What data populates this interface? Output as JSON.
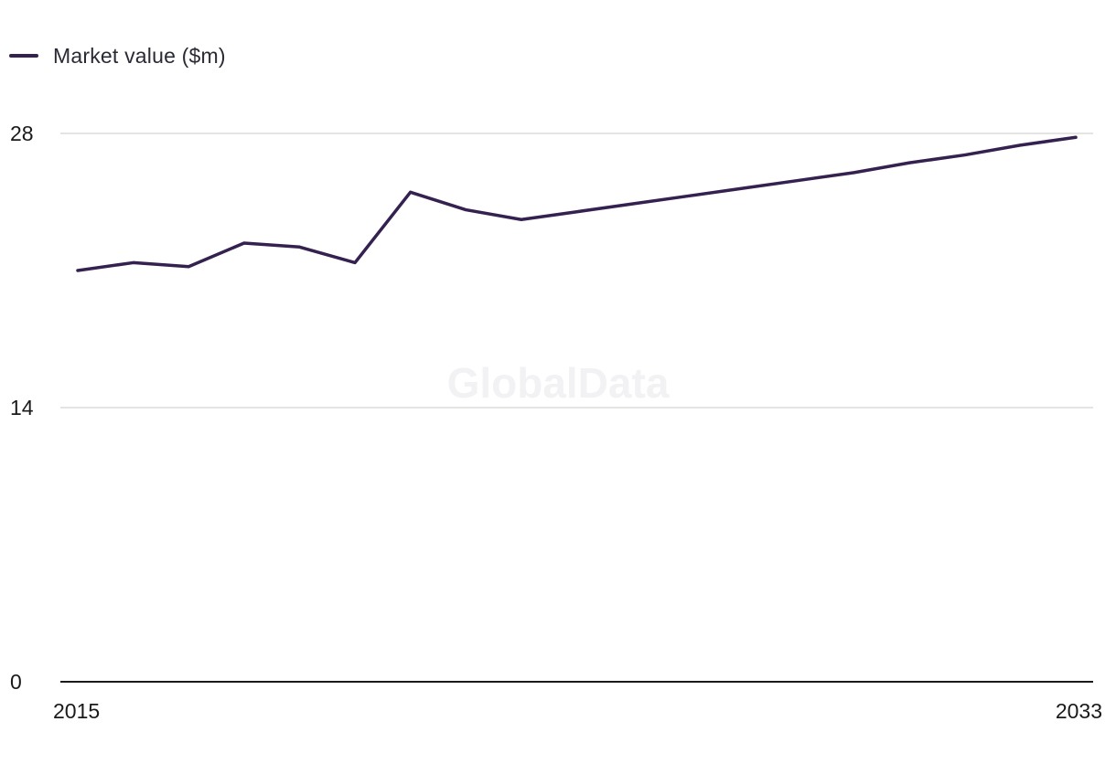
{
  "chart_data": {
    "type": "line",
    "x": [
      2015,
      2016,
      2017,
      2018,
      2019,
      2020,
      2021,
      2022,
      2023,
      2024,
      2025,
      2026,
      2027,
      2028,
      2029,
      2030,
      2031,
      2032,
      2033
    ],
    "series": [
      {
        "name": "Market value ($m)",
        "color": "#35214f",
        "values": [
          21.0,
          21.4,
          21.2,
          22.4,
          22.2,
          21.4,
          25.0,
          24.1,
          23.6,
          24.0,
          24.4,
          24.8,
          25.2,
          25.6,
          26.0,
          26.5,
          26.9,
          27.4,
          27.8
        ]
      }
    ],
    "x_tick_labels": [
      "2015",
      "2033"
    ],
    "y_ticks": [
      0,
      14,
      28
    ],
    "ylim": [
      0,
      28
    ],
    "xlim": [
      2015,
      2033
    ],
    "grid": true,
    "legend_position": "top-left",
    "watermark": "GlobalData",
    "colors": {
      "gridline": "#dcdcdc",
      "baseline": "#1a1a1a",
      "tick_text": "#1a1a1a",
      "watermark": "#f2f2f4"
    }
  }
}
